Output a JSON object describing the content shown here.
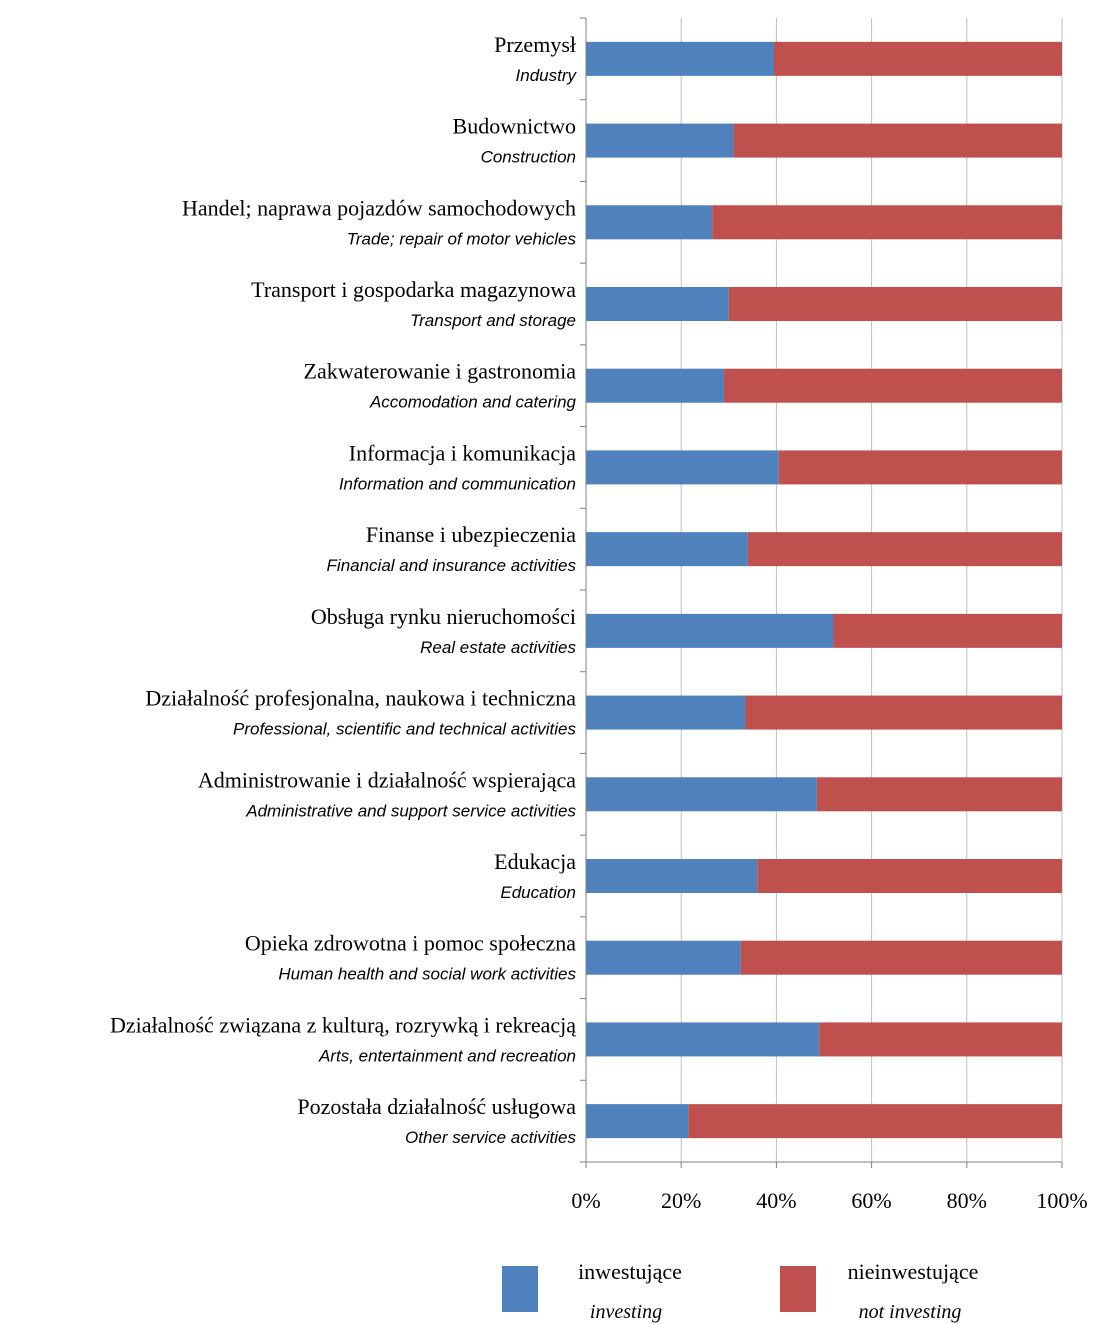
{
  "chart_data": {
    "type": "bar",
    "orientation": "horizontal",
    "stacked": true,
    "percent_stacked": true,
    "categories": [
      {
        "pl": "Przemysł",
        "en": "Industry"
      },
      {
        "pl": "Budownictwo",
        "en": "Construction"
      },
      {
        "pl": "Handel; naprawa pojazdów samochodowych",
        "en": "Trade; repair of motor vehicles"
      },
      {
        "pl": "Transport i gospodarka magazynowa",
        "en": "Transport and storage"
      },
      {
        "pl": "Zakwaterowanie i gastronomia",
        "en": "Accomodation and catering"
      },
      {
        "pl": "Informacja i komunikacja",
        "en": "Information and communication"
      },
      {
        "pl": "Finanse i ubezpieczenia",
        "en": "Financial and insurance activities"
      },
      {
        "pl": "Obsługa rynku nieruchomości",
        "en": "Real estate activities"
      },
      {
        "pl": "Działalność profesjonalna, naukowa i techniczna",
        "en": "Professional, scientific and technical activities"
      },
      {
        "pl": "Administrowanie i działalność wspierająca",
        "en": "Administrative and support service activities"
      },
      {
        "pl": "Edukacja",
        "en": "Education"
      },
      {
        "pl": "Opieka zdrowotna i pomoc społeczna",
        "en": "Human health and social work activities"
      },
      {
        "pl": "Działalność związana z kulturą, rozrywką i rekreacją",
        "en": "Arts, entertainment and recreation"
      },
      {
        "pl": "Pozostała działalność usługowa",
        "en": "Other service activities"
      }
    ],
    "series": [
      {
        "name": "inwestujące",
        "name_en": "investing",
        "color": "#4f81bd",
        "values": [
          39.5,
          31,
          26.5,
          30,
          29,
          40.5,
          34,
          52,
          33.5,
          48.5,
          36,
          32.5,
          49,
          21.5
        ]
      },
      {
        "name": "nieinwestujące",
        "name_en": "not investing",
        "color": "#c0504d",
        "values": [
          60.5,
          69,
          73.5,
          70,
          71,
          59.5,
          66,
          48,
          66.5,
          51.5,
          64,
          67.5,
          51,
          78.5
        ]
      }
    ],
    "xticks": [
      "0%",
      "20%",
      "40%",
      "60%",
      "80%",
      "100%"
    ],
    "xlim": [
      0,
      100
    ],
    "grid": true,
    "legend_position": "bottom"
  }
}
